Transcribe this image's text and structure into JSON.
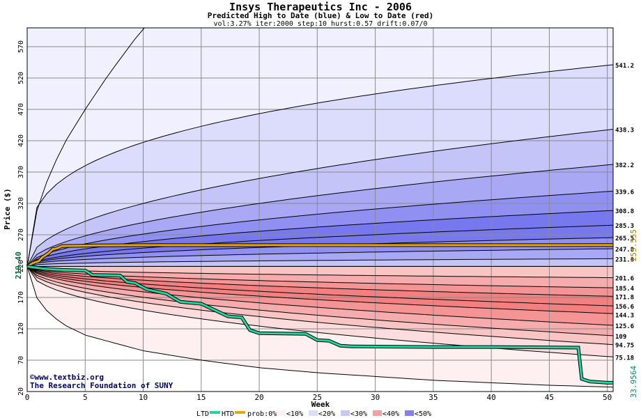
{
  "header": {
    "title": "Insys Therapeutics Inc - 2006",
    "subtitle": "Predicted High to Date (blue) &  Low to Date (red)",
    "params": "vol:3.27% iter:2000 step:10 hurst:0.57 drift:0.07/0"
  },
  "axes": {
    "xlabel": "Week",
    "ylabel": "Price ($)",
    "x_ticks": [
      0,
      5,
      10,
      15,
      20,
      25,
      30,
      35,
      40,
      45,
      50
    ],
    "y_ticks": [
      20,
      70,
      120,
      170,
      220,
      270,
      320,
      370,
      420,
      470,
      520,
      570
    ]
  },
  "markers": {
    "start_price": "219.40",
    "htd_last": "253.555",
    "ltd_last": "33.9564"
  },
  "credits": {
    "line1": "©www.textbiz.org",
    "line2": "The Research Foundation of SUNY"
  },
  "legend": {
    "ltd": "LTD",
    "htd": "HTD",
    "prob": "prob:0%",
    "b10": "<10%",
    "b20": "<20%",
    "b30": "<30%",
    "b40": "<40%",
    "b50": "<50%"
  },
  "colors": {
    "ltd": "#1fd6a0",
    "htd": "#e8a800",
    "high_bands": [
      "#f0f0fe",
      "#dcdcfc",
      "#c4c4f8",
      "#a8a8f4",
      "#9090f2",
      "#7878ee"
    ],
    "low_bands": [
      "#fef0f0",
      "#fcdcdc",
      "#f9c4c4",
      "#f6acac",
      "#f49494",
      "#f28080"
    ]
  },
  "chart_data": {
    "type": "line",
    "xlim": [
      0,
      50.5
    ],
    "ylim": [
      20,
      600
    ],
    "start": 219.4,
    "percentile_high": [
      {
        "end_label": "541.2",
        "end": 541.2,
        "shape": 0.3
      },
      {
        "end_label": "438.3",
        "end": 438.3,
        "shape": 0.48
      },
      {
        "end_label": "382.2",
        "end": 382.2,
        "shape": 0.52
      },
      {
        "end_label": "339.6",
        "end": 339.6,
        "shape": 0.52
      },
      {
        "end_label": "308.8",
        "end": 308.8,
        "shape": 0.5
      },
      {
        "end_label": "285.3",
        "end": 285.3,
        "shape": 0.5
      },
      {
        "end_label": "265.5",
        "end": 265.5,
        "shape": 0.45
      },
      {
        "end_label": "247.8",
        "end": 247.8,
        "shape": 0.4
      },
      {
        "end_label": "231.8",
        "end": 231.8,
        "shape": 0.35
      }
    ],
    "percentile_low": [
      {
        "end_label": "201.6",
        "end": 201.6,
        "shape": 0.4
      },
      {
        "end_label": "185.4",
        "end": 185.4,
        "shape": 0.45
      },
      {
        "end_label": "171.8",
        "end": 171.8,
        "shape": 0.48
      },
      {
        "end_label": "156.6",
        "end": 156.6,
        "shape": 0.5
      },
      {
        "end_label": "144.3",
        "end": 144.3,
        "shape": 0.5
      },
      {
        "end_label": "125.6",
        "end": 125.6,
        "shape": 0.52
      },
      {
        "end_label": "109",
        "end": 109,
        "shape": 0.5
      },
      {
        "end_label": "94.75",
        "end": 94.75,
        "shape": 0.48
      },
      {
        "end_label": "75.18",
        "end": 75.18,
        "shape": 0.45
      }
    ],
    "outer_high": [
      [
        0,
        219.4
      ],
      [
        1,
        325
      ],
      [
        3,
        410
      ],
      [
        5,
        470
      ],
      [
        7,
        525
      ],
      [
        9,
        575
      ],
      [
        10,
        600
      ]
    ],
    "outer_low": [
      [
        0,
        219.4
      ],
      [
        1,
        160
      ],
      [
        3,
        128
      ],
      [
        5,
        110
      ],
      [
        10,
        85
      ],
      [
        15,
        70
      ],
      [
        20,
        58
      ],
      [
        25,
        50
      ],
      [
        30,
        44
      ],
      [
        35,
        38
      ],
      [
        40,
        34
      ],
      [
        45,
        30
      ],
      [
        50.5,
        27
      ]
    ],
    "htd_series": [
      [
        0,
        219.4
      ],
      [
        0.5,
        225
      ],
      [
        1,
        228
      ],
      [
        1.3,
        234
      ],
      [
        1.8,
        240
      ],
      [
        2.2,
        247
      ],
      [
        2.5,
        248
      ],
      [
        3,
        252
      ],
      [
        6,
        253
      ],
      [
        10,
        253.5
      ],
      [
        50.5,
        253.555
      ]
    ],
    "ltd_series": [
      [
        0,
        219.4
      ],
      [
        1,
        217
      ],
      [
        2,
        215
      ],
      [
        3,
        214
      ],
      [
        5,
        213
      ],
      [
        5.6,
        206
      ],
      [
        8,
        205
      ],
      [
        8.6,
        195
      ],
      [
        9.3,
        193
      ],
      [
        10.3,
        183
      ],
      [
        12,
        176
      ],
      [
        13.2,
        163
      ],
      [
        15,
        160
      ],
      [
        17.3,
        140
      ],
      [
        18.5,
        138
      ],
      [
        19.2,
        118
      ],
      [
        20,
        113
      ],
      [
        24,
        112
      ],
      [
        25,
        102
      ],
      [
        26,
        101
      ],
      [
        27,
        93
      ],
      [
        28,
        92
      ],
      [
        35,
        91
      ],
      [
        40,
        91
      ],
      [
        47.5,
        90
      ],
      [
        47.8,
        40
      ],
      [
        48.5,
        36
      ],
      [
        50,
        34
      ],
      [
        50.5,
        33.9564
      ]
    ]
  }
}
